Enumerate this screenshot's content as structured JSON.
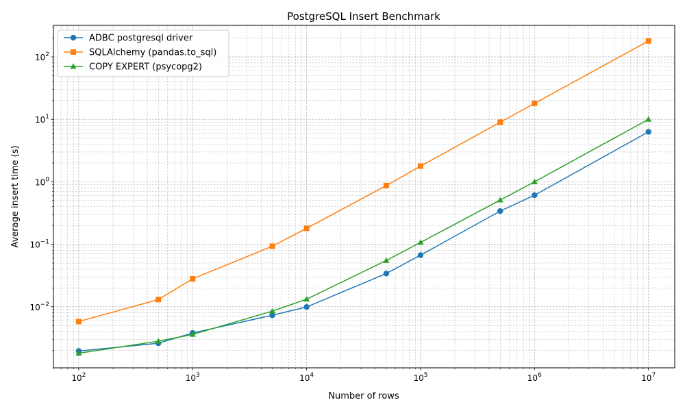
{
  "chart_data": {
    "type": "line",
    "title": "PostgreSQL Insert Benchmark",
    "xlabel": "Number of rows",
    "ylabel": "Average insert time (s)",
    "xscale": "log",
    "yscale": "log",
    "xlim": [
      60,
      17000000
    ],
    "ylim": [
      0.00105,
      320
    ],
    "grid": "major and minor",
    "legend_position": "top-left",
    "x": [
      100,
      500,
      1000,
      5000,
      10000,
      50000,
      100000,
      500000,
      1000000,
      10000000
    ],
    "x_ticks": [
      {
        "value": 100,
        "base": "10",
        "exp": "2"
      },
      {
        "value": 1000,
        "base": "10",
        "exp": "3"
      },
      {
        "value": 10000,
        "base": "10",
        "exp": "4"
      },
      {
        "value": 100000,
        "base": "10",
        "exp": "5"
      },
      {
        "value": 1000000,
        "base": "10",
        "exp": "6"
      },
      {
        "value": 10000000,
        "base": "10",
        "exp": "7"
      }
    ],
    "y_ticks": [
      {
        "value": 0.01,
        "base": "10",
        "exp": "−2"
      },
      {
        "value": 0.1,
        "base": "10",
        "exp": "−1"
      },
      {
        "value": 1,
        "base": "10",
        "exp": "0"
      },
      {
        "value": 10,
        "base": "10",
        "exp": "1"
      },
      {
        "value": 100,
        "base": "10",
        "exp": "2"
      }
    ],
    "series": [
      {
        "name": "ADBC postgresql driver",
        "color": "#1f77b4",
        "marker": "circle",
        "values": [
          0.00195,
          0.0026,
          0.0038,
          0.0073,
          0.0099,
          0.034,
          0.067,
          0.34,
          0.61,
          6.3
        ]
      },
      {
        "name": "SQLAlchemy (pandas.to_sql)",
        "color": "#ff7f0e",
        "marker": "square",
        "values": [
          0.0058,
          0.013,
          0.028,
          0.093,
          0.18,
          0.87,
          1.78,
          9.0,
          18.0,
          180.0
        ]
      },
      {
        "name": "COPY EXPERT (psycopg2)",
        "color": "#2ca02c",
        "marker": "triangle",
        "values": [
          0.0018,
          0.0028,
          0.0036,
          0.0085,
          0.0132,
          0.055,
          0.107,
          0.51,
          1.0,
          10.0
        ]
      }
    ]
  }
}
